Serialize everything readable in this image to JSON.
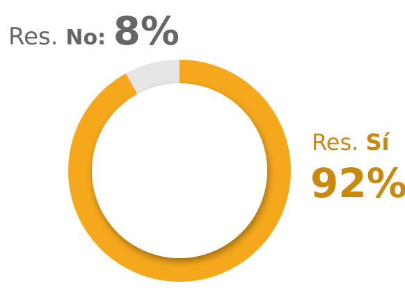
{
  "chart_data": {
    "type": "donut",
    "label_prefix": "Res.",
    "categories": [
      "Sí",
      "No:"
    ],
    "values": [
      92,
      8
    ],
    "value_labels": [
      "92%",
      "8%"
    ],
    "colors": [
      "#f5a81c",
      "#e6e6e6"
    ]
  }
}
